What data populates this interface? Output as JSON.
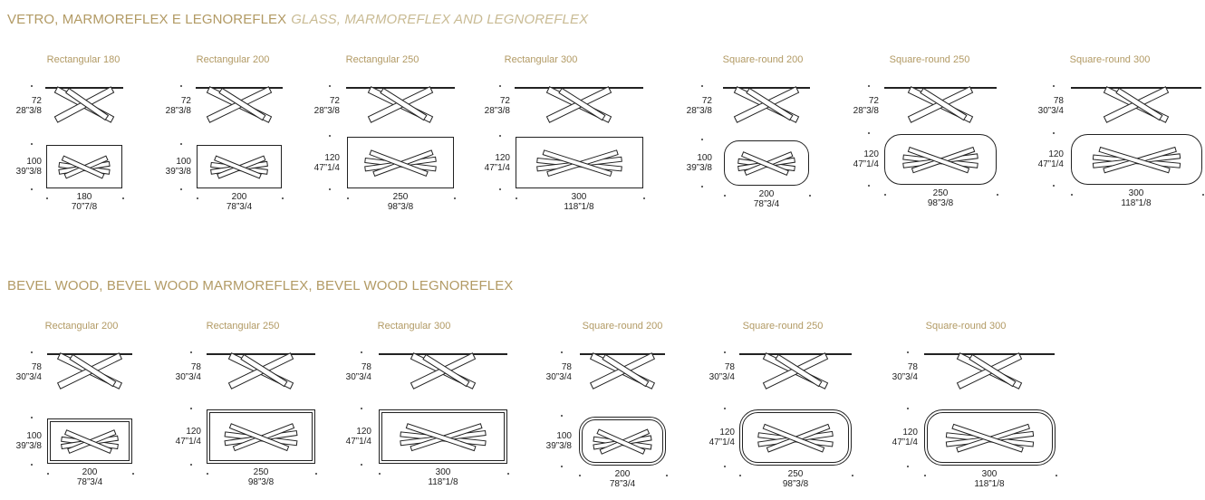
{
  "sections": [
    {
      "title": "VETRO, MARMOREFLEX E LEGNOREFLEX",
      "title_alt": "GLASS, MARMOREFLEX AND LEGNOREFLEX",
      "models": [
        {
          "name": "Rectangular 180",
          "h_cm": "72",
          "h_in": "28”3/8",
          "d_cm": "100",
          "d_in": "39”3/8",
          "w_cm": "180",
          "w_in": "70”7/8"
        },
        {
          "name": "Rectangular 200",
          "h_cm": "72",
          "h_in": "28”3/8",
          "d_cm": "100",
          "d_in": "39”3/8",
          "w_cm": "200",
          "w_in": "78”3/4"
        },
        {
          "name": "Rectangular 250",
          "h_cm": "72",
          "h_in": "28”3/8",
          "d_cm": "120",
          "d_in": "47”1/4",
          "w_cm": "250",
          "w_in": "98”3/8"
        },
        {
          "name": "Rectangular 300",
          "h_cm": "72",
          "h_in": "28”3/8",
          "d_cm": "120",
          "d_in": "47”1/4",
          "w_cm": "300",
          "w_in": "118”1/8"
        },
        {
          "name": "Square-round 200",
          "h_cm": "72",
          "h_in": "28”3/8",
          "d_cm": "100",
          "d_in": "39”3/8",
          "w_cm": "200",
          "w_in": "78”3/4"
        },
        {
          "name": "Square-round 250",
          "h_cm": "72",
          "h_in": "28”3/8",
          "d_cm": "120",
          "d_in": "47”1/4",
          "w_cm": "250",
          "w_in": "98”3/8"
        },
        {
          "name": "Square-round 300",
          "h_cm": "78",
          "h_in": "30”3/4",
          "d_cm": "120",
          "d_in": "47”1/4",
          "w_cm": "300",
          "w_in": "118”1/8"
        }
      ]
    },
    {
      "title": "BEVEL WOOD, BEVEL WOOD MARMOREFLEX, BEVEL WOOD LEGNOREFLEX",
      "title_alt": "",
      "models": [
        {
          "name": "Rectangular 200",
          "h_cm": "78",
          "h_in": "30”3/4",
          "d_cm": "100",
          "d_in": "39”3/8",
          "w_cm": "200",
          "w_in": "78”3/4"
        },
        {
          "name": "Rectangular 250",
          "h_cm": "78",
          "h_in": "30”3/4",
          "d_cm": "120",
          "d_in": "47”1/4",
          "w_cm": "250",
          "w_in": "98”3/8"
        },
        {
          "name": "Rectangular 300",
          "h_cm": "78",
          "h_in": "30”3/4",
          "d_cm": "120",
          "d_in": "47”1/4",
          "w_cm": "300",
          "w_in": "118”1/8"
        },
        {
          "name": "Square-round 200",
          "h_cm": "78",
          "h_in": "30”3/4",
          "d_cm": "100",
          "d_in": "39”3/8",
          "w_cm": "200",
          "w_in": "78”3/4"
        },
        {
          "name": "Square-round 250",
          "h_cm": "78",
          "h_in": "30”3/4",
          "d_cm": "120",
          "d_in": "47”1/4",
          "w_cm": "250",
          "w_in": "98”3/8"
        },
        {
          "name": "Square-round 300",
          "h_cm": "78",
          "h_in": "30”3/4",
          "d_cm": "120",
          "d_in": "47”1/4",
          "w_cm": "300",
          "w_in": "118”1/8"
        }
      ]
    }
  ],
  "colors": {
    "accent": "#b29a64",
    "accent_light": "#c9bb94",
    "line": "#222222"
  }
}
